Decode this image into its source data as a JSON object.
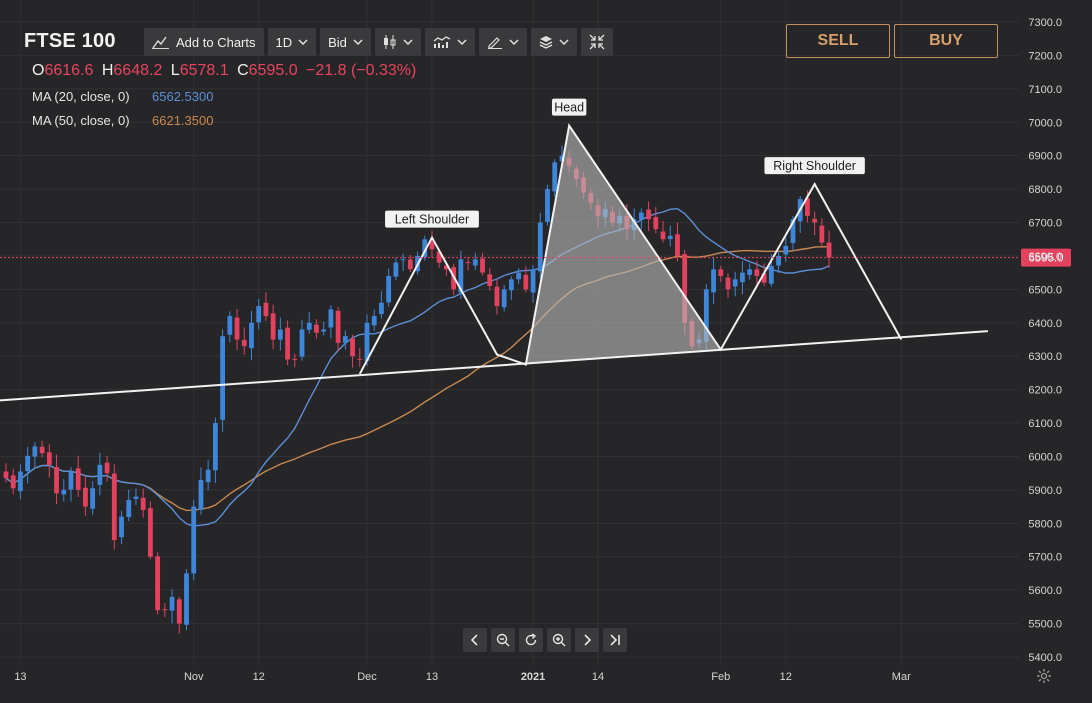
{
  "header": {
    "symbol": "FTSE 100",
    "add_to_charts": "Add to Charts",
    "interval": "1D",
    "price_type": "Bid",
    "sell_label": "SELL",
    "buy_label": "BUY"
  },
  "ohlc": {
    "open_key": "O",
    "open": "6616.6",
    "high_key": "H",
    "high": "6648.2",
    "low_key": "L",
    "low": "6578.1",
    "close_key": "C",
    "close": "6595.0",
    "change": "−21.8 (−0.33%)"
  },
  "indicators": [
    {
      "label": "MA (20, close, 0)",
      "value": "6562.5300",
      "color": "#5b8fd6"
    },
    {
      "label": "MA (50, close, 0)",
      "value": "6621.3500",
      "color": "#c8884e"
    }
  ],
  "colors": {
    "up": "#3d86d9",
    "down": "#e3415d",
    "background": "#262628",
    "accent": "#c48f5e"
  },
  "chart_data": {
    "type": "candlestick",
    "title": "FTSE 100",
    "ylim": [
      5400,
      7300
    ],
    "y_ticks": [
      "7300.0",
      "7200.0",
      "7100.0",
      "7000.0",
      "6900.0",
      "6800.0",
      "6700.0",
      "6600.0",
      "6500.0",
      "6400.0",
      "6300.0",
      "6200.0",
      "6100.0",
      "6000.0",
      "5900.0",
      "5800.0",
      "5700.0",
      "5600.0",
      "5500.0",
      "5400.0"
    ],
    "x_ticks": [
      {
        "label": "13",
        "bar": 2
      },
      {
        "label": "Nov",
        "bar": 26
      },
      {
        "label": "12",
        "bar": 35
      },
      {
        "label": "Dec",
        "bar": 50
      },
      {
        "label": "13",
        "bar": 59
      },
      {
        "label": "2021",
        "bar": 73
      },
      {
        "label": "14",
        "bar": 82
      },
      {
        "label": "Feb",
        "bar": 99
      },
      {
        "label": "12",
        "bar": 108
      },
      {
        "label": "Mar",
        "bar": 124
      }
    ],
    "last_price": "6595.0",
    "patterns": [
      {
        "label": "Left Shoulder"
      },
      {
        "label": "Head"
      },
      {
        "label": "Right Shoulder"
      }
    ],
    "pattern_points": [
      [
        49,
        6247
      ],
      [
        59,
        6655
      ],
      [
        68,
        6305
      ],
      [
        72,
        6275
      ],
      [
        78,
        6990
      ],
      [
        99,
        6320
      ],
      [
        112,
        6815
      ],
      [
        124,
        6350
      ]
    ],
    "neckline": [
      [
        -6,
        6160
      ],
      [
        136,
        6375
      ]
    ],
    "closes": [
      5935,
      5905,
      5955,
      6002,
      6030,
      6010,
      5975,
      5890,
      5900,
      5955,
      5900,
      5850,
      5905,
      5975,
      5950,
      5750,
      5820,
      5870,
      5880,
      5840,
      5700,
      5540,
      5540,
      5580,
      5500,
      5650,
      5850,
      5930,
      5960,
      6100,
      6360,
      6420,
      6350,
      6330,
      6400,
      6450,
      6420,
      6350,
      6380,
      6290,
      6290,
      6380,
      6400,
      6370,
      6380,
      6440,
      6340,
      6360,
      6300,
      6290,
      6400,
      6420,
      6460,
      6540,
      6580,
      6590,
      6560,
      6600,
      6650,
      6620,
      6580,
      6560,
      6500,
      6590,
      6580,
      6590,
      6550,
      6510,
      6450,
      6500,
      6530,
      6550,
      6500,
      6560,
      6700,
      6800,
      6880,
      6900,
      6870,
      6830,
      6790,
      6760,
      6720,
      6740,
      6700,
      6720,
      6680,
      6710,
      6730,
      6710,
      6680,
      6650,
      6660,
      6600,
      6400,
      6330,
      6350,
      6500,
      6560,
      6540,
      6500,
      6530,
      6550,
      6560,
      6540,
      6520,
      6570,
      6600,
      6630,
      6710,
      6770,
      6720,
      6700,
      6640,
      6595
    ]
  },
  "nav": [
    "chevron-left",
    "zoom-out",
    "reset",
    "zoom-in",
    "chevron-right",
    "go-to-end"
  ]
}
